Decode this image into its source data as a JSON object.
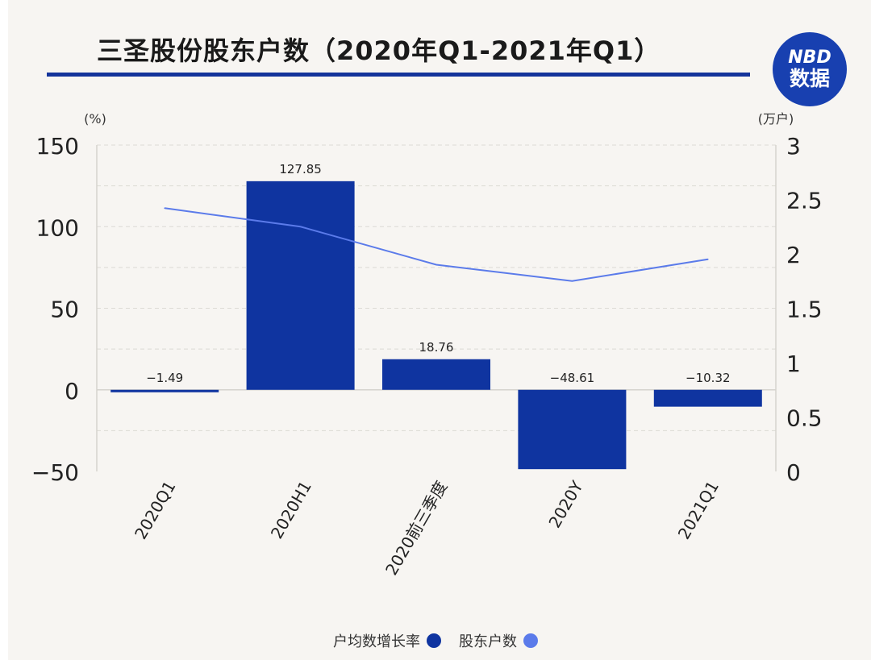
{
  "header": {
    "title": "三圣股份股东户数（2020年Q1-2021年Q1）",
    "logo_top": "NBD",
    "logo_bottom": "数据"
  },
  "chart_data": {
    "type": "bar",
    "title": "三圣股份股东户数（2020年Q1-2021年Q1）",
    "categories": [
      "2020Q1",
      "2020H1",
      "2020前三季度",
      "2020Y",
      "2021Q1"
    ],
    "series": [
      {
        "name": "户均数增长率",
        "type": "bar",
        "axis": "left",
        "values": [
          -1.49,
          127.85,
          18.76,
          -48.61,
          -10.32
        ],
        "labels": [
          "−1.49",
          "127.85",
          "18.76",
          "−48.61",
          "−10.32"
        ]
      },
      {
        "name": "股东户数",
        "type": "line",
        "axis": "right",
        "values": [
          2.42,
          2.25,
          1.9,
          1.75,
          1.95
        ]
      }
    ],
    "y_left": {
      "unit": "(%)",
      "range": [
        -50,
        150
      ],
      "ticks": [
        150,
        100,
        50,
        0,
        -50
      ],
      "tick_labels": [
        "150",
        "100",
        "50",
        "0",
        "−50"
      ]
    },
    "y_right": {
      "unit": "(万户)",
      "range": [
        0,
        3
      ],
      "ticks": [
        3,
        2.5,
        2,
        1.5,
        1,
        0.5,
        0
      ],
      "tick_labels": [
        "3",
        "2.5",
        "2",
        "1.5",
        "1",
        "0.5",
        "0"
      ]
    },
    "legend": [
      "户均数增长率",
      "股东户数"
    ],
    "legend_position": "bottom"
  },
  "colors": {
    "bar": "#0f34a0",
    "line": "#5b7bea",
    "grid": "#dcdad5",
    "axis": "#d5d3ce"
  }
}
